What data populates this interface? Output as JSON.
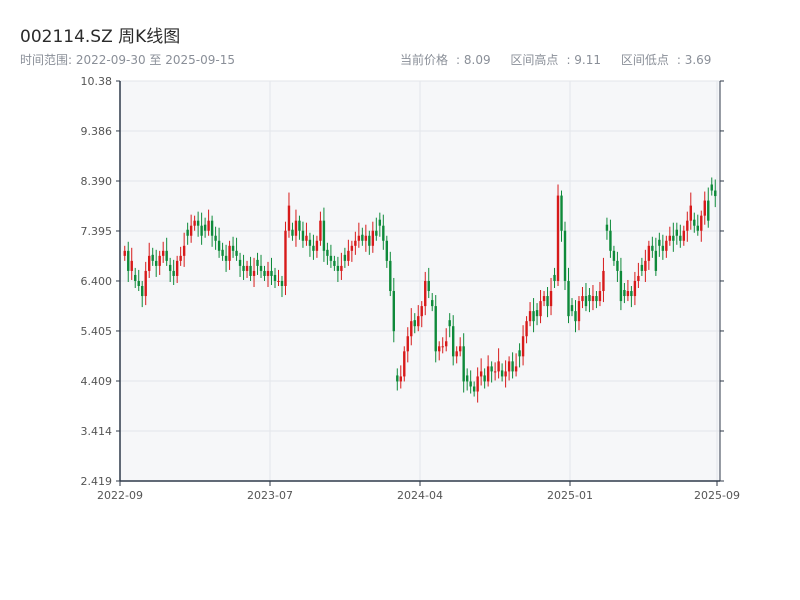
{
  "title": "002114.SZ 周K线图",
  "subtitle_left": "时间范围: 2022-09-30 至 2025-09-15",
  "stats": [
    {
      "label": "当前价格",
      "value": "8.09"
    },
    {
      "label": "区间高点",
      "value": "9.11"
    },
    {
      "label": "区间低点",
      "value": "3.69"
    }
  ],
  "colors": {
    "up": "#d71a1a",
    "down": "#0e8a3a",
    "plot_bg": "#f6f7f9",
    "axis": "#2f3a4a",
    "grid": "#e3e6ea"
  },
  "chart_data": {
    "type": "candlestick",
    "xlabel": "",
    "ylabel": "",
    "y_ticks": [
      2.419,
      3.414,
      4.409,
      5.405,
      6.4,
      7.395,
      8.39,
      9.386,
      10.38
    ],
    "ylim": [
      2.419,
      10.38
    ],
    "x_ticks": [
      "2022-09",
      "2023-07",
      "2024-04",
      "2025-01",
      "2025-09"
    ],
    "x_range": [
      "2022-09-30",
      "2025-09-15"
    ],
    "grid": true,
    "weekly_close": [
      7.0,
      6.6,
      6.8,
      6.4,
      6.3,
      6.1,
      6.6,
      6.9,
      6.8,
      6.7,
      6.9,
      7.0,
      6.8,
      6.6,
      6.5,
      6.8,
      6.9,
      7.1,
      7.3,
      7.5,
      7.6,
      7.5,
      7.3,
      7.4,
      7.6,
      7.3,
      7.2,
      7.0,
      6.9,
      6.8,
      7.1,
      7.0,
      6.9,
      6.7,
      6.6,
      6.7,
      6.5,
      6.6,
      6.7,
      6.6,
      6.5,
      6.6,
      6.5,
      6.4,
      6.4,
      6.3,
      7.4,
      7.9,
      7.3,
      7.6,
      7.4,
      7.2,
      7.3,
      7.1,
      7.0,
      7.2,
      7.6,
      7.0,
      6.9,
      6.8,
      6.7,
      6.6,
      6.7,
      6.8,
      7.0,
      7.1,
      7.2,
      7.3,
      7.2,
      7.3,
      7.1,
      7.4,
      7.3,
      7.5,
      7.2,
      6.8,
      6.2,
      5.4,
      4.4,
      4.5,
      5.0,
      5.3,
      5.6,
      5.5,
      5.7,
      5.9,
      6.4,
      6.2,
      5.9,
      5.0,
      5.1,
      5.1,
      5.2,
      5.5,
      4.9,
      5.0,
      5.1,
      4.4,
      4.4,
      4.3,
      4.2,
      4.5,
      4.6,
      4.4,
      4.7,
      4.6,
      4.6,
      4.8,
      4.5,
      4.6,
      4.8,
      4.6,
      4.7,
      4.9,
      5.3,
      5.6,
      5.8,
      5.6,
      5.7,
      6.0,
      6.1,
      5.9,
      6.2,
      6.4,
      8.1,
      7.4,
      6.4,
      5.7,
      5.8,
      5.6,
      6.0,
      6.1,
      5.9,
      6.0,
      6.1,
      6.0,
      6.2,
      6.6,
      7.4,
      7.0,
      6.8,
      6.6,
      6.0,
      6.1,
      6.2,
      6.1,
      6.4,
      6.5,
      6.6,
      6.8,
      7.1,
      7.0,
      6.6,
      7.1,
      7.0,
      7.2,
      7.3,
      7.2,
      7.3,
      7.2,
      7.4,
      7.6,
      7.9,
      7.5,
      7.4,
      7.7,
      8.0,
      7.6,
      8.2,
      8.09
    ]
  }
}
